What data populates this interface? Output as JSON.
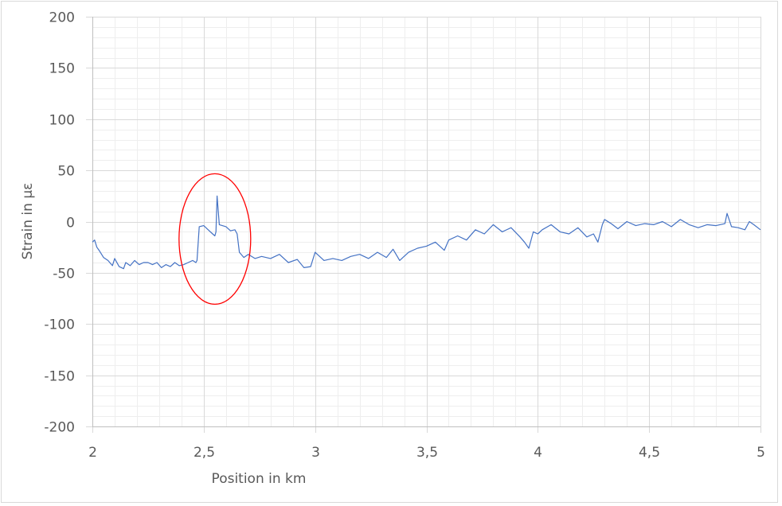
{
  "chart_data": {
    "type": "line",
    "title": "",
    "xlabel": "Position in km",
    "ylabel": "Strain in µε",
    "xlim": [
      2,
      5
    ],
    "ylim": [
      -200,
      200
    ],
    "x_ticks": [
      "2",
      "2,5",
      "3",
      "3,5",
      "4",
      "4,5",
      "5"
    ],
    "y_ticks": [
      "200",
      "150",
      "100",
      "50",
      "0",
      "-50",
      "-100",
      "-150",
      "-200"
    ],
    "grid": {
      "major": true,
      "minor": true,
      "x_minor_step": 0.1,
      "y_minor_step": 10
    },
    "legend": null,
    "series": [
      {
        "name": "Strain",
        "color": "#4472C4",
        "x": [
          2.0,
          2.01,
          2.02,
          2.03,
          2.05,
          2.07,
          2.09,
          2.1,
          2.12,
          2.14,
          2.15,
          2.17,
          2.19,
          2.21,
          2.23,
          2.25,
          2.27,
          2.29,
          2.31,
          2.33,
          2.35,
          2.37,
          2.39,
          2.41,
          2.43,
          2.45,
          2.465,
          2.47,
          2.48,
          2.5,
          2.52,
          2.54,
          2.55,
          2.555,
          2.56,
          2.57,
          2.6,
          2.62,
          2.64,
          2.65,
          2.66,
          2.68,
          2.7,
          2.73,
          2.76,
          2.8,
          2.84,
          2.88,
          2.92,
          2.95,
          2.98,
          3.0,
          3.04,
          3.08,
          3.12,
          3.16,
          3.2,
          3.24,
          3.28,
          3.32,
          3.35,
          3.38,
          3.42,
          3.46,
          3.5,
          3.54,
          3.58,
          3.6,
          3.64,
          3.68,
          3.72,
          3.76,
          3.8,
          3.84,
          3.88,
          3.92,
          3.94,
          3.96,
          3.98,
          4.0,
          4.02,
          4.06,
          4.1,
          4.14,
          4.18,
          4.22,
          4.25,
          4.27,
          4.29,
          4.3,
          4.33,
          4.36,
          4.4,
          4.44,
          4.48,
          4.52,
          4.56,
          4.6,
          4.64,
          4.68,
          4.72,
          4.76,
          4.8,
          4.84,
          4.85,
          4.87,
          4.9,
          4.93,
          4.95,
          4.97,
          5.0
        ],
        "values": [
          -20,
          -18,
          -25,
          -28,
          -35,
          -38,
          -43,
          -36,
          -44,
          -46,
          -40,
          -43,
          -38,
          -42,
          -40,
          -40,
          -42,
          -40,
          -45,
          -42,
          -44,
          -40,
          -43,
          -42,
          -40,
          -38,
          -40,
          -38,
          -5,
          -4,
          -8,
          -12,
          -14,
          -10,
          25,
          -3,
          -5,
          -9,
          -8,
          -12,
          -30,
          -35,
          -32,
          -36,
          -34,
          -36,
          -32,
          -40,
          -37,
          -45,
          -44,
          -30,
          -38,
          -36,
          -38,
          -34,
          -32,
          -36,
          -30,
          -35,
          -27,
          -38,
          -30,
          -26,
          -24,
          -20,
          -28,
          -18,
          -14,
          -18,
          -8,
          -12,
          -3,
          -10,
          -6,
          -15,
          -20,
          -26,
          -10,
          -12,
          -8,
          -3,
          -10,
          -12,
          -6,
          -15,
          -12,
          -20,
          -3,
          2,
          -2,
          -7,
          0,
          -4,
          -2,
          -3,
          0,
          -5,
          2,
          -3,
          -6,
          -3,
          -4,
          -2,
          8,
          -5,
          -6,
          -8,
          0,
          -3,
          -8
        ],
        "annotations": [
          {
            "type": "ellipse",
            "color": "#FF0000",
            "center_km": 2.55,
            "center_strain": -17,
            "note": "highlighted strain anomaly region"
          }
        ]
      }
    ]
  },
  "axes": {
    "x_title": "Position in km",
    "y_title": "Strain in µε"
  }
}
